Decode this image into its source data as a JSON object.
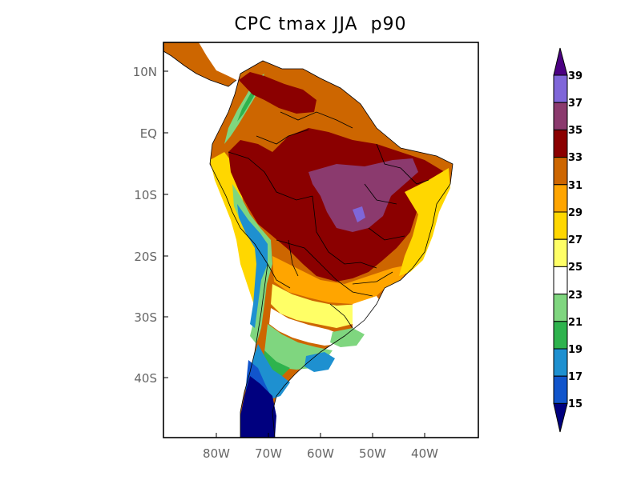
{
  "title": "CPC tmax JJA  p90",
  "lat_labels": [
    "10N",
    "EQ",
    "10S",
    "20S",
    "30S",
    "40S"
  ],
  "lon_labels": [
    "80W",
    "70W",
    "60W",
    "50W",
    "40W"
  ],
  "colorbar": {
    "labels": [
      "39",
      "37",
      "35",
      "33",
      "31",
      "29",
      "27",
      "25",
      "23",
      "21",
      "19",
      "17",
      "15"
    ],
    "colors": [
      "#7f66d9",
      "#8b3a6e",
      "#8b0000",
      "#cd6600",
      "#ffa500",
      "#ffd700",
      "#ffff66",
      "#ffffff",
      "#7fd67f",
      "#2eb34d",
      "#1e90d0",
      "#1155cc"
    ],
    "over_color": "#4b0082",
    "under_color": "#00007f"
  }
}
